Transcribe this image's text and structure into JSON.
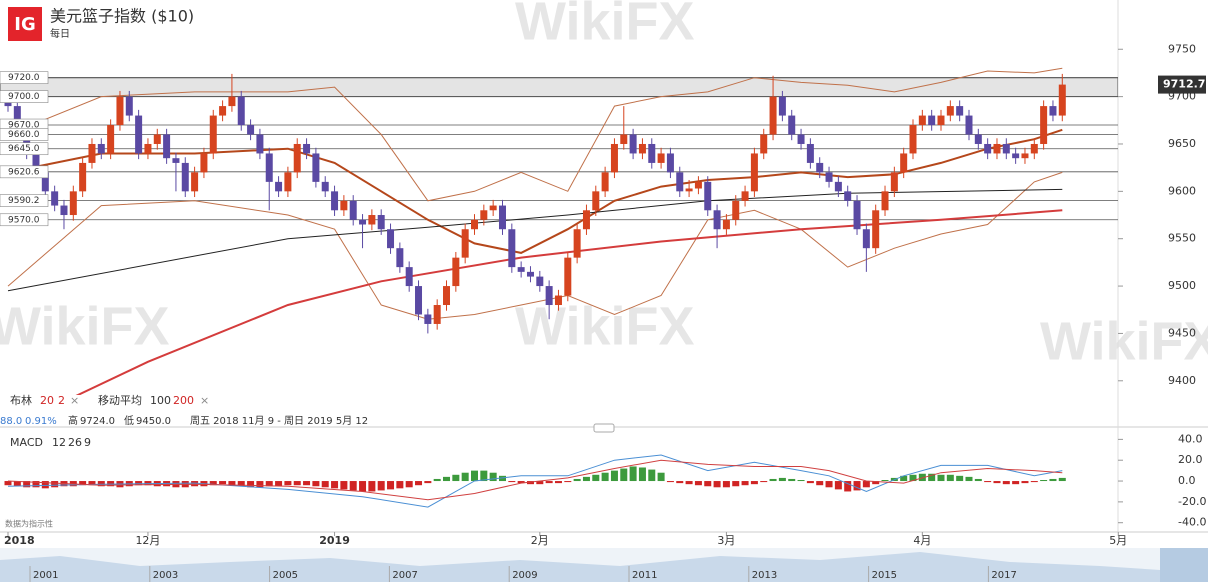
{
  "header": {
    "logo": "IG",
    "title": "美元篮子指数 ($10)",
    "subtitle": "每日"
  },
  "watermark": "WikiFX",
  "chart_data": {
    "type": "candlestick",
    "up_color": "#d6441f",
    "down_color": "#5a49a3",
    "ylim": [
      9385,
      9802
    ],
    "yticks": [
      9400,
      9450,
      9500,
      9550,
      9600,
      9650,
      9700,
      9750
    ],
    "last_price": 9712.7,
    "zone": [
      9700,
      9720
    ],
    "levels": [
      {
        "value": 9720,
        "label": "9720.0"
      },
      {
        "value": 9700,
        "label": "9700.0"
      },
      {
        "value": 9670,
        "label": "9670.0"
      },
      {
        "value": 9660,
        "label": "9660.0"
      },
      {
        "value": 9645,
        "label": "9645.0"
      },
      {
        "value": 9620.6,
        "label": "9620.6"
      },
      {
        "value": 9590.2,
        "label": "9590.2"
      },
      {
        "value": 9570,
        "label": "9570.0"
      }
    ],
    "xlabels": [
      {
        "index": 0,
        "label": "2018"
      },
      {
        "index": 15,
        "label": "12月"
      },
      {
        "index": 35,
        "label": "2019"
      },
      {
        "index": 57,
        "label": "2月"
      },
      {
        "index": 77,
        "label": "3月"
      },
      {
        "index": 98,
        "label": "4月"
      },
      {
        "index": 119,
        "label": "5月"
      }
    ],
    "candles": [
      [
        9700,
        9706,
        9684,
        9690
      ],
      [
        9690,
        9696,
        9654,
        9660
      ],
      [
        9660,
        9666,
        9634,
        9640
      ],
      [
        9640,
        9646,
        9614,
        9620
      ],
      [
        9620,
        9626,
        9594,
        9600
      ],
      [
        9600,
        9606,
        9579,
        9585
      ],
      [
        9585,
        9591,
        9560,
        9575
      ],
      [
        9575,
        9606,
        9569,
        9600
      ],
      [
        9600,
        9636,
        9594,
        9630
      ],
      [
        9630,
        9656,
        9624,
        9650
      ],
      [
        9650,
        9656,
        9634,
        9640
      ],
      [
        9640,
        9676,
        9634,
        9670
      ],
      [
        9670,
        9706,
        9664,
        9700
      ],
      [
        9700,
        9706,
        9674,
        9680
      ],
      [
        9680,
        9686,
        9634,
        9640
      ],
      [
        9640,
        9656,
        9634,
        9650
      ],
      [
        9650,
        9666,
        9644,
        9660
      ],
      [
        9660,
        9666,
        9629,
        9635
      ],
      [
        9635,
        9641,
        9600,
        9630
      ],
      [
        9630,
        9636,
        9594,
        9600
      ],
      [
        9600,
        9626,
        9594,
        9620
      ],
      [
        9620,
        9646,
        9614,
        9640
      ],
      [
        9640,
        9686,
        9634,
        9680
      ],
      [
        9680,
        9696,
        9674,
        9690
      ],
      [
        9690,
        9724,
        9684,
        9700
      ],
      [
        9700,
        9706,
        9664,
        9670
      ],
      [
        9670,
        9676,
        9654,
        9660
      ],
      [
        9660,
        9666,
        9634,
        9640
      ],
      [
        9640,
        9646,
        9580,
        9610
      ],
      [
        9610,
        9616,
        9594,
        9600
      ],
      [
        9600,
        9626,
        9594,
        9620
      ],
      [
        9620,
        9656,
        9614,
        9650
      ],
      [
        9650,
        9656,
        9634,
        9640
      ],
      [
        9640,
        9646,
        9604,
        9610
      ],
      [
        9610,
        9616,
        9594,
        9600
      ],
      [
        9600,
        9606,
        9574,
        9580
      ],
      [
        9580,
        9596,
        9574,
        9590
      ],
      [
        9590,
        9596,
        9564,
        9570
      ],
      [
        9570,
        9576,
        9540,
        9565
      ],
      [
        9565,
        9581,
        9559,
        9575
      ],
      [
        9575,
        9581,
        9554,
        9560
      ],
      [
        9560,
        9566,
        9534,
        9540
      ],
      [
        9540,
        9546,
        9514,
        9520
      ],
      [
        9520,
        9526,
        9494,
        9500
      ],
      [
        9500,
        9506,
        9464,
        9470
      ],
      [
        9470,
        9476,
        9450,
        9460
      ],
      [
        9460,
        9486,
        9454,
        9480
      ],
      [
        9480,
        9506,
        9474,
        9500
      ],
      [
        9500,
        9536,
        9494,
        9530
      ],
      [
        9530,
        9566,
        9524,
        9560
      ],
      [
        9560,
        9576,
        9554,
        9570
      ],
      [
        9570,
        9586,
        9564,
        9580
      ],
      [
        9580,
        9591,
        9574,
        9585
      ],
      [
        9585,
        9591,
        9554,
        9560
      ],
      [
        9560,
        9566,
        9514,
        9520
      ],
      [
        9520,
        9526,
        9509,
        9515
      ],
      [
        9515,
        9521,
        9504,
        9510
      ],
      [
        9510,
        9516,
        9494,
        9500
      ],
      [
        9500,
        9506,
        9465,
        9480
      ],
      [
        9480,
        9496,
        9474,
        9490
      ],
      [
        9490,
        9536,
        9484,
        9530
      ],
      [
        9530,
        9566,
        9524,
        9560
      ],
      [
        9560,
        9586,
        9554,
        9580
      ],
      [
        9580,
        9606,
        9574,
        9600
      ],
      [
        9600,
        9626,
        9594,
        9620
      ],
      [
        9620,
        9656,
        9614,
        9650
      ],
      [
        9650,
        9690,
        9644,
        9660
      ],
      [
        9660,
        9666,
        9634,
        9640
      ],
      [
        9640,
        9656,
        9634,
        9650
      ],
      [
        9650,
        9656,
        9624,
        9630
      ],
      [
        9630,
        9646,
        9624,
        9640
      ],
      [
        9640,
        9646,
        9614,
        9620
      ],
      [
        9620,
        9626,
        9594,
        9600
      ],
      [
        9600,
        9612,
        9594,
        9603
      ],
      [
        9603,
        9616,
        9597,
        9610
      ],
      [
        9610,
        9616,
        9574,
        9580
      ],
      [
        9580,
        9586,
        9540,
        9560
      ],
      [
        9560,
        9576,
        9554,
        9570
      ],
      [
        9570,
        9596,
        9564,
        9590
      ],
      [
        9590,
        9606,
        9584,
        9600
      ],
      [
        9600,
        9646,
        9594,
        9640
      ],
      [
        9640,
        9666,
        9634,
        9660
      ],
      [
        9660,
        9722,
        9654,
        9700
      ],
      [
        9700,
        9706,
        9674,
        9680
      ],
      [
        9680,
        9686,
        9654,
        9660
      ],
      [
        9660,
        9666,
        9644,
        9650
      ],
      [
        9650,
        9656,
        9624,
        9630
      ],
      [
        9630,
        9636,
        9614,
        9620
      ],
      [
        9620,
        9626,
        9604,
        9610
      ],
      [
        9610,
        9616,
        9594,
        9600
      ],
      [
        9600,
        9606,
        9584,
        9590
      ],
      [
        9590,
        9596,
        9554,
        9560
      ],
      [
        9560,
        9566,
        9515,
        9540
      ],
      [
        9540,
        9586,
        9534,
        9580
      ],
      [
        9580,
        9606,
        9574,
        9600
      ],
      [
        9600,
        9626,
        9594,
        9620
      ],
      [
        9620,
        9646,
        9614,
        9640
      ],
      [
        9640,
        9676,
        9634,
        9670
      ],
      [
        9670,
        9686,
        9664,
        9680
      ],
      [
        9680,
        9686,
        9664,
        9670
      ],
      [
        9670,
        9686,
        9664,
        9680
      ],
      [
        9680,
        9696,
        9674,
        9690
      ],
      [
        9690,
        9696,
        9674,
        9680
      ],
      [
        9680,
        9686,
        9654,
        9660
      ],
      [
        9660,
        9666,
        9644,
        9650
      ],
      [
        9650,
        9656,
        9634,
        9640
      ],
      [
        9640,
        9656,
        9634,
        9650
      ],
      [
        9650,
        9656,
        9634,
        9640
      ],
      [
        9640,
        9646,
        9629,
        9635
      ],
      [
        9635,
        9646,
        9629,
        9640
      ],
      [
        9640,
        9656,
        9634,
        9650
      ],
      [
        9650,
        9696,
        9644,
        9690
      ],
      [
        9690,
        9696,
        9674,
        9680
      ],
      [
        9680,
        9724,
        9674,
        9712.7
      ]
    ],
    "overlays": [
      {
        "color": "#b5471b",
        "width": 2,
        "x": [
          0,
          10,
          20,
          30,
          35,
          40,
          45,
          50,
          55,
          60,
          65,
          70,
          75,
          80,
          85,
          90,
          95,
          100,
          105,
          110,
          113
        ],
        "values": [
          9620,
          9640,
          9640,
          9645,
          9630,
          9600,
          9570,
          9545,
          9535,
          9560,
          9590,
          9605,
          9612,
          9615,
          9620,
          9615,
          9618,
          9630,
          9645,
          9655,
          9665
        ]
      },
      {
        "color": "#c0714a",
        "width": 1,
        "x": [
          0,
          10,
          20,
          30,
          35,
          40,
          45,
          50,
          55,
          60,
          65,
          70,
          75,
          80,
          85,
          90,
          95,
          100,
          105,
          110,
          113
        ],
        "values": [
          9660,
          9700,
          9705,
          9705,
          9710,
          9660,
          9590,
          9600,
          9620,
          9600,
          9690,
          9700,
          9705,
          9720,
          9715,
          9712,
          9705,
          9715,
          9727,
          9725,
          9730
        ]
      },
      {
        "color": "#c0714a",
        "width": 1,
        "x": [
          0,
          10,
          20,
          30,
          35,
          40,
          45,
          50,
          55,
          60,
          65,
          70,
          75,
          80,
          85,
          90,
          95,
          100,
          105,
          110,
          113
        ],
        "values": [
          9500,
          9585,
          9590,
          9575,
          9560,
          9480,
          9465,
          9470,
          9480,
          9490,
          9470,
          9490,
          9570,
          9580,
          9560,
          9520,
          9540,
          9555,
          9565,
          9610,
          9620
        ]
      },
      {
        "color": "#222222",
        "width": 1,
        "x": [
          0,
          30,
          45,
          60,
          75,
          90,
          113
        ],
        "values": [
          9495,
          9550,
          9562,
          9575,
          9590,
          9598,
          9602
        ]
      },
      {
        "color": "#d43c3c",
        "width": 2,
        "x": [
          0,
          15,
          30,
          40,
          55,
          70,
          85,
          100,
          113
        ],
        "values": [
          9350,
          9420,
          9480,
          9505,
          9530,
          9547,
          9560,
          9570,
          9580
        ]
      }
    ],
    "legend_bar": {
      "bollinger_label": "布林",
      "bollinger_params": [
        20,
        2
      ],
      "remove": "×",
      "ma_label": "移动平均",
      "ma_params": [
        100,
        200
      ]
    },
    "info": {
      "change": "88.0",
      "change_pct": "0.91%",
      "high_label": "高",
      "high": "9724.0",
      "low_label": "低",
      "low": "9450.0",
      "range": "周五 2018 11月 9 - 周日 2019 5月 12"
    },
    "macd": {
      "label": "MACD",
      "params": [
        12,
        26,
        9
      ],
      "ylim": [
        -47,
        49
      ],
      "yticks": [
        {
          "value": 40,
          "label": "40.0"
        },
        {
          "value": 20,
          "label": "20.0"
        },
        {
          "value": 0,
          "label": "0.0"
        },
        {
          "value": -20,
          "label": "-20.0"
        },
        {
          "value": -40,
          "label": "-40.0"
        }
      ],
      "pos_color": "#3d9a3d",
      "neg_color": "#d02424",
      "histogram": [
        -4,
        -5,
        -6,
        -6,
        -7,
        -6,
        -5,
        -5,
        -4,
        -4,
        -5,
        -5,
        -6,
        -5,
        -4,
        -4,
        -5,
        -5,
        -6,
        -6,
        -5,
        -5,
        -4,
        -3,
        -4,
        -5,
        -6,
        -6,
        -5,
        -5,
        -4,
        -4,
        -4,
        -5,
        -6,
        -7,
        -8,
        -9,
        -10,
        -10,
        -9,
        -8,
        -7,
        -6,
        -4,
        -2,
        2,
        4,
        6,
        8,
        10,
        10,
        8,
        5,
        -1,
        -2,
        -3,
        -3,
        -2,
        -2,
        -1,
        2,
        4,
        6,
        8,
        10,
        12,
        14,
        13,
        11,
        8,
        -1,
        -2,
        -3,
        -4,
        -5,
        -6,
        -6,
        -5,
        -4,
        -3,
        -1,
        2,
        3,
        2,
        1,
        -2,
        -4,
        -6,
        -8,
        -10,
        -9,
        -6,
        -3,
        1,
        3,
        5,
        6,
        7,
        7,
        6,
        6,
        5,
        4,
        2,
        -1,
        -2,
        -3,
        -3,
        -2,
        -1,
        1,
        2,
        3
      ],
      "lines": [
        {
          "color": "#4a8fd4",
          "x": [
            0,
            10,
            20,
            30,
            38,
            45,
            50,
            55,
            60,
            65,
            70,
            75,
            80,
            85,
            88,
            92,
            96,
            100,
            105,
            110,
            113
          ],
          "values": [
            -5,
            -3,
            -2,
            -8,
            -15,
            -25,
            0,
            5,
            5,
            20,
            25,
            10,
            18,
            10,
            5,
            -10,
            5,
            15,
            15,
            5,
            10
          ]
        },
        {
          "color": "#d04040",
          "x": [
            0,
            10,
            20,
            30,
            38,
            45,
            50,
            55,
            60,
            65,
            70,
            75,
            80,
            85,
            88,
            92,
            96,
            100,
            105,
            110,
            113
          ],
          "values": [
            0,
            -4,
            -3,
            -5,
            -10,
            -18,
            -12,
            -2,
            3,
            12,
            20,
            16,
            14,
            14,
            10,
            0,
            -2,
            8,
            12,
            10,
            8
          ]
        }
      ],
      "disclaimer": "数据为指示性"
    },
    "navigator_years": [
      "2001",
      "2003",
      "2005",
      "2007",
      "2009",
      "2011",
      "2013",
      "2015",
      "2017"
    ]
  }
}
